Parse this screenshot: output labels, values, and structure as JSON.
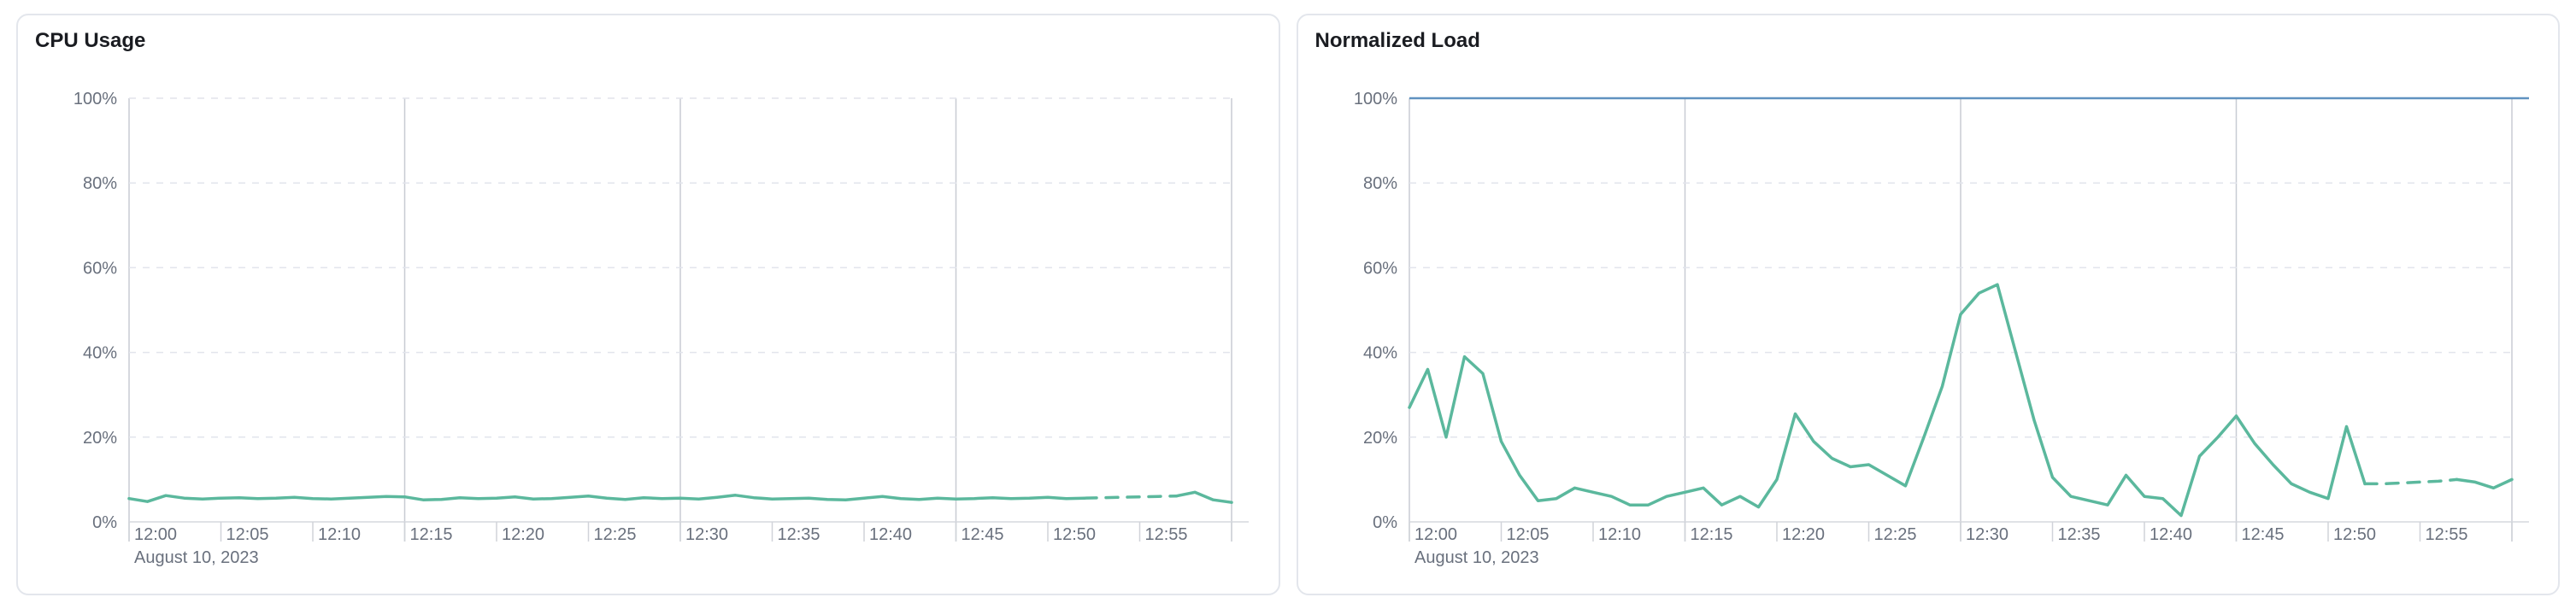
{
  "page": {
    "background": "#ffffff",
    "card_border_color": "#e3e6ec"
  },
  "colors": {
    "series_green": "#5bb89d",
    "threshold_blue": "#6092c0",
    "grid_dashed": "#e2e4ec",
    "grid_vertical": "#c8ccd3",
    "axis_line": "#d5d8de",
    "tick_mark": "#d0d3d9",
    "tick_text": "#69707d",
    "title_text": "#1a1c21"
  },
  "chart_data": [
    {
      "type": "line",
      "title": "CPU Usage",
      "date_label": "August 10, 2023",
      "x_start": "12:00",
      "x_end": "13:00",
      "x_step_minutes": 1,
      "x_tick_labels": [
        "12:00",
        "12:05",
        "12:10",
        "12:15",
        "12:20",
        "12:25",
        "12:30",
        "12:35",
        "12:40",
        "12:45",
        "12:50",
        "12:55"
      ],
      "y_tick_labels": [
        "0%",
        "20%",
        "40%",
        "60%",
        "80%",
        "100%"
      ],
      "ylim": [
        0,
        100
      ],
      "grid": {
        "horizontal": "dashed",
        "vertical_every_minutes": 15
      },
      "threshold_line": null,
      "series": [
        {
          "name": "CPU Usage",
          "color": "#5bb89d",
          "dashed_minutes": [
            52,
            57
          ],
          "values": [
            5.5,
            4.8,
            6.2,
            5.6,
            5.4,
            5.6,
            5.7,
            5.5,
            5.6,
            5.8,
            5.5,
            5.4,
            5.6,
            5.8,
            6.0,
            5.9,
            5.2,
            5.3,
            5.7,
            5.5,
            5.6,
            5.9,
            5.4,
            5.5,
            5.8,
            6.1,
            5.6,
            5.3,
            5.7,
            5.5,
            5.6,
            5.4,
            5.8,
            6.3,
            5.7,
            5.4,
            5.5,
            5.6,
            5.3,
            5.2,
            5.6,
            6.0,
            5.5,
            5.3,
            5.6,
            5.4,
            5.5,
            5.7,
            5.5,
            5.6,
            5.8,
            5.5,
            5.6,
            5.7,
            5.8,
            5.9,
            6.0,
            6.1,
            7.0,
            5.2,
            4.6
          ]
        }
      ]
    },
    {
      "type": "line",
      "title": "Normalized Load",
      "date_label": "August 10, 2023",
      "x_start": "12:00",
      "x_end": "13:00",
      "x_step_minutes": 1,
      "x_tick_labels": [
        "12:00",
        "12:05",
        "12:10",
        "12:15",
        "12:20",
        "12:25",
        "12:30",
        "12:35",
        "12:40",
        "12:45",
        "12:50",
        "12:55"
      ],
      "y_tick_labels": [
        "0%",
        "20%",
        "40%",
        "60%",
        "80%",
        "100%"
      ],
      "ylim": [
        0,
        100
      ],
      "grid": {
        "horizontal": "dashed",
        "vertical_every_minutes": 15
      },
      "threshold_line": {
        "value": 100,
        "color": "#6092c0"
      },
      "series": [
        {
          "name": "Normalized Load",
          "color": "#5bb89d",
          "dashed_minutes": [
            52,
            57
          ],
          "values": [
            27,
            36,
            20,
            39,
            35,
            19,
            11,
            5,
            5.5,
            8,
            7,
            6,
            4,
            4,
            6,
            7,
            8,
            4,
            6,
            3.5,
            10,
            25.5,
            19,
            15,
            13,
            13.5,
            11,
            8.5,
            20,
            32,
            49,
            54,
            56,
            40,
            24,
            10.5,
            6,
            5,
            4,
            11,
            6,
            5.5,
            1.5,
            15.5,
            20,
            25,
            18.5,
            13.5,
            9,
            7,
            5.5,
            22.5,
            9,
            9,
            9.2,
            9.4,
            9.6,
            10,
            9.4,
            8,
            10
          ]
        }
      ]
    }
  ]
}
